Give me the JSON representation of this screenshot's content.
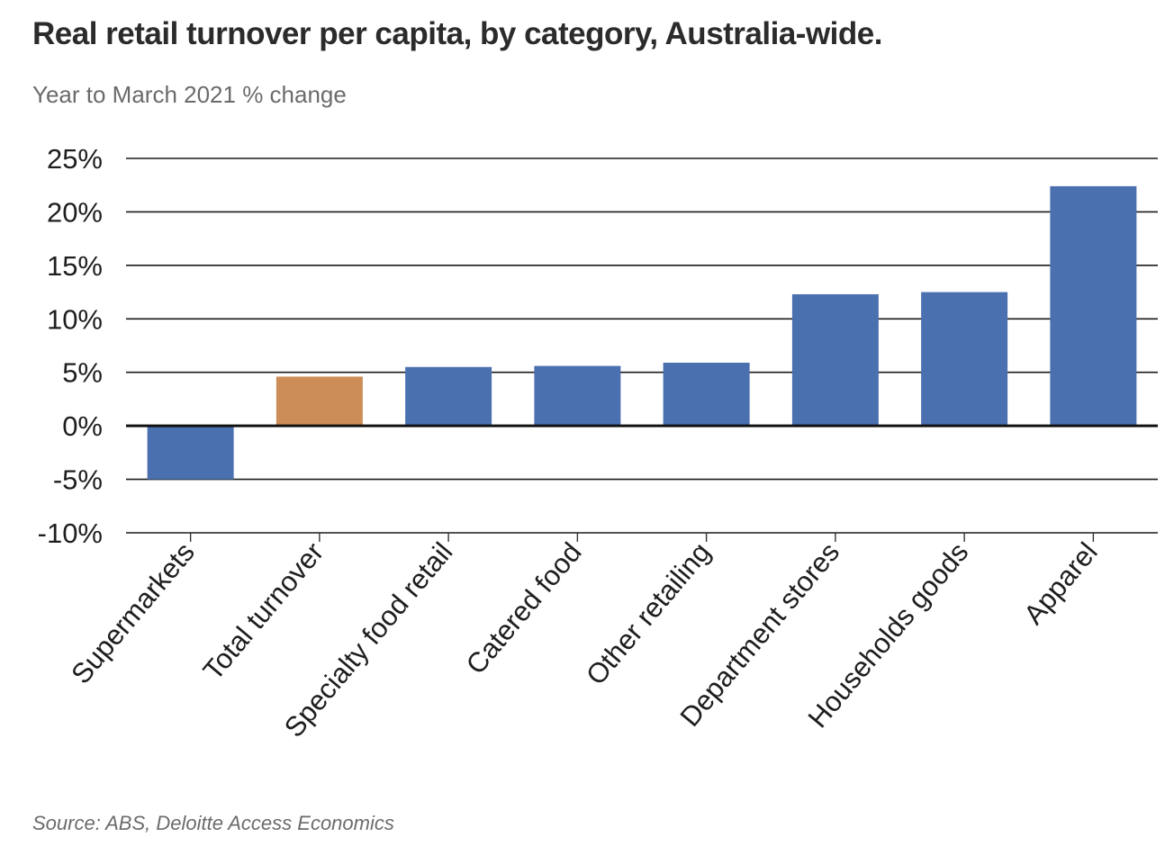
{
  "chart_data": {
    "type": "bar",
    "title": "Real retail turnover per capita, by category, Australia-wide.",
    "subtitle": "Year to March 2021 % change",
    "source": "Source: ABS, Deloitte Access Economics",
    "categories": [
      "Supermarkets",
      "Total turnover",
      "Specialty food retail",
      "Catered food",
      "Other retailing",
      "Department stores",
      "Households goods",
      "Apparel"
    ],
    "values": [
      -5.0,
      4.6,
      5.5,
      5.6,
      5.9,
      12.3,
      12.5,
      22.4
    ],
    "highlight_category": "Total turnover",
    "y_tick_labels": [
      "25%",
      "20%",
      "15%",
      "10%",
      "5%",
      "0%",
      "-5%",
      "-10%"
    ],
    "y_ticks": [
      25,
      20,
      15,
      10,
      5,
      0,
      -5,
      -10
    ],
    "ylim": [
      -10,
      25
    ],
    "grid": true,
    "colors": {
      "bar": "#4a70b0",
      "highlight": "#cd8d56",
      "grid": "#1a1a1a"
    }
  }
}
